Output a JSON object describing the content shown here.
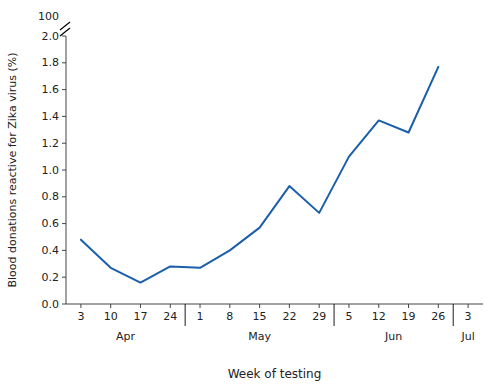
{
  "chart_data": {
    "type": "line",
    "xlabel": "Week of testing",
    "ylabel": "Blood donations reactive for Zika virus (%)",
    "categories": [
      "3",
      "10",
      "17",
      "24",
      "1",
      "8",
      "15",
      "22",
      "29",
      "5",
      "12",
      "19",
      "26",
      "3"
    ],
    "values": [
      0.48,
      0.27,
      0.16,
      0.28,
      0.27,
      0.4,
      0.57,
      0.88,
      0.68,
      1.1,
      1.37,
      1.28,
      1.77,
      null
    ],
    "x_groups": [
      {
        "label": "Apr",
        "size": 4
      },
      {
        "label": "May",
        "size": 5
      },
      {
        "label": "Jun",
        "size": 4
      },
      {
        "label": "Jul",
        "size": 1
      }
    ],
    "ylim": [
      0.0,
      2.0
    ],
    "yticks": [
      {
        "value": 0,
        "label": "0.0"
      },
      0.2,
      0.4,
      0.6,
      0.8,
      {
        "value": 1,
        "label": "1.0"
      },
      1.2,
      1.4,
      1.6,
      1.8,
      {
        "value": 2,
        "label": "2.0"
      }
    ],
    "annotations": [
      {
        "text": "100"
      }
    ],
    "color": "#1b5faa",
    "grid": false
  }
}
